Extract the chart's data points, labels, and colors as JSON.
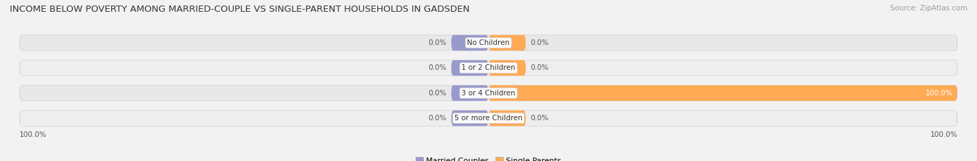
{
  "title": "INCOME BELOW POVERTY AMONG MARRIED-COUPLE VS SINGLE-PARENT HOUSEHOLDS IN GADSDEN",
  "source": "Source: ZipAtlas.com",
  "categories": [
    "No Children",
    "1 or 2 Children",
    "3 or 4 Children",
    "5 or more Children"
  ],
  "married_values": [
    0.0,
    0.0,
    0.0,
    0.0
  ],
  "single_values": [
    0.0,
    0.0,
    100.0,
    0.0
  ],
  "married_color": "#9999cc",
  "single_color": "#ffaa55",
  "bg_color": "#f2f2f2",
  "bar_bg_color": "#e4e4e4",
  "bar_stripe_color": "#ebebeb",
  "title_fontsize": 9.5,
  "source_fontsize": 7.5,
  "label_fontsize": 7.5,
  "category_fontsize": 7.5,
  "legend_fontsize": 8,
  "axis_limit": 100.0,
  "bar_height": 0.62,
  "fig_width": 14.06,
  "fig_height": 2.33
}
